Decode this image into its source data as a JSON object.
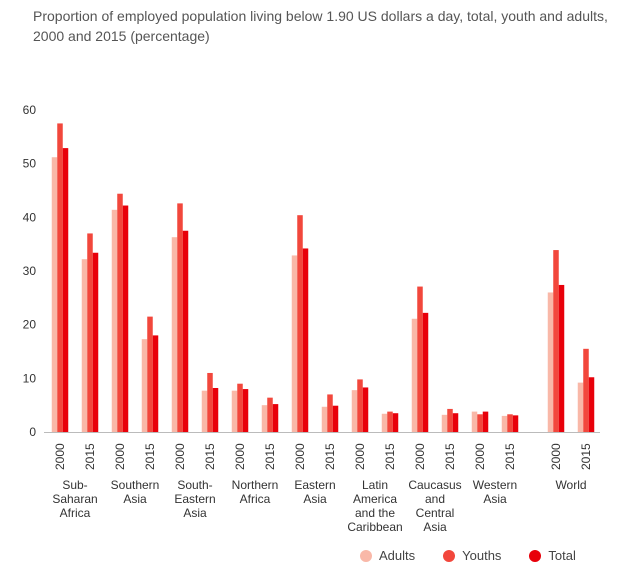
{
  "chart_data": {
    "type": "bar",
    "title": "Proportion of employed population living below 1.90 US dollars a day, total, youth and adults, 2000 and 2015 (percentage)",
    "ylim": [
      0,
      60
    ],
    "yticks": [
      0,
      10,
      20,
      30,
      40,
      50,
      60
    ],
    "regions": [
      "Sub-Saharan Africa",
      "Southern Asia",
      "South-Eastern Asia",
      "Northern Africa",
      "Eastern Asia",
      "Latin America and the Caribbean",
      "Caucasus and Central Asia",
      "Western Asia",
      "World"
    ],
    "region_lines": [
      [
        "Sub-",
        "Saharan",
        "Africa"
      ],
      [
        "Southern",
        "Asia"
      ],
      [
        "South-",
        "Eastern",
        "Asia"
      ],
      [
        "Northern",
        "Africa"
      ],
      [
        "Eastern",
        "Asia"
      ],
      [
        "Latin",
        "America",
        "and the",
        "Caribbean"
      ],
      [
        "Caucasus",
        "and",
        "Central",
        "Asia"
      ],
      [
        "Western",
        "Asia"
      ],
      [
        "World"
      ]
    ],
    "years": [
      "2000",
      "2015"
    ],
    "series": [
      {
        "name": "Adults",
        "color": "#f9b8a8",
        "values": [
          51.2,
          32.2,
          41.4,
          17.3,
          36.3,
          7.7,
          7.7,
          5.0,
          32.9,
          4.7,
          7.8,
          3.4,
          21.1,
          3.2,
          3.8,
          3.0,
          26.0,
          9.2
        ]
      },
      {
        "name": "Youths",
        "color": "#f2473c",
        "values": [
          57.5,
          37.0,
          44.4,
          21.5,
          42.6,
          11.0,
          9.0,
          6.4,
          40.4,
          7.0,
          9.8,
          3.8,
          27.1,
          4.3,
          3.3,
          3.3,
          33.9,
          15.5
        ]
      },
      {
        "name": "Total",
        "color": "#e8000a",
        "values": [
          52.9,
          33.4,
          42.2,
          18.0,
          37.5,
          8.2,
          8.0,
          5.2,
          34.2,
          4.9,
          8.3,
          3.5,
          22.2,
          3.5,
          3.8,
          3.1,
          27.4,
          10.2
        ]
      }
    ],
    "legend_position": "bottom-right",
    "grid": false
  }
}
